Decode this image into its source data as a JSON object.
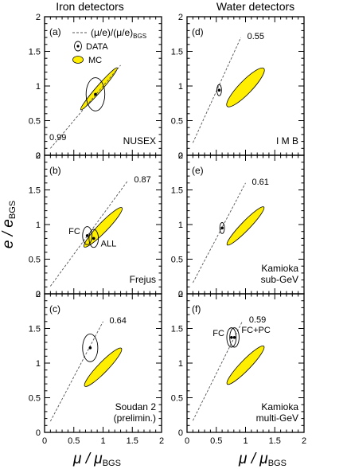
{
  "column_titles": [
    "Iron detectors",
    "Water detectors"
  ],
  "xlabel": {
    "main": "μ / μ",
    "sub": "BGS"
  },
  "ylabel": {
    "main": "e / e",
    "sub": "BGS"
  },
  "legend": {
    "line_label": "(μ/e)/(μ/e)",
    "line_sub": "BGS",
    "data_label": "DATA",
    "mc_label": "MC"
  },
  "colors": {
    "mc_fill": "#ffee00",
    "mc_stroke": "#000000",
    "line": "#555555"
  },
  "chart_data": [
    {
      "type": "scatter",
      "panel_label": "(a)",
      "detector": [
        "NUSEX"
      ],
      "ratio_label": "0.99",
      "column": "Iron detectors",
      "xlim": [
        0,
        2
      ],
      "ylim": [
        0,
        2
      ],
      "xticks": [
        "0",
        "0.5",
        "1",
        "1.5",
        "2"
      ],
      "yticks": [
        "0",
        "0.5",
        "1",
        "1.5",
        "2"
      ],
      "ratio_line": [
        [
          0.1,
          0.1
        ],
        [
          1.3,
          1.3
        ]
      ],
      "mc_ellipse": {
        "cx": 0.93,
        "cy": 0.96,
        "length": 0.95,
        "width": 0.1,
        "angle_deg": 49
      },
      "data_points": [
        {
          "label": "",
          "x": 0.87,
          "y": 0.88,
          "rx": 0.16,
          "ry": 0.24
        }
      ]
    },
    {
      "type": "scatter",
      "panel_label": "(b)",
      "detector": [
        "Frejus"
      ],
      "ratio_label": "0.87",
      "column": "Iron detectors",
      "xlim": [
        0,
        2
      ],
      "ylim": [
        0,
        2
      ],
      "xticks": [
        "0",
        "0.5",
        "1",
        "1.5",
        "2"
      ],
      "yticks": [
        "0",
        "0.5",
        "1",
        "1.5",
        "2"
      ],
      "ratio_line": [
        [
          0.1,
          0.11
        ],
        [
          1.42,
          1.63
        ]
      ],
      "mc_ellipse": {
        "cx": 1.0,
        "cy": 0.96,
        "length": 0.93,
        "width": 0.16,
        "angle_deg": 46
      },
      "data_points": [
        {
          "label": "FC",
          "x": 0.73,
          "y": 0.84,
          "rx": 0.08,
          "ry": 0.13
        },
        {
          "label": "ALL",
          "x": 0.84,
          "y": 0.8,
          "rx": 0.08,
          "ry": 0.13
        }
      ]
    },
    {
      "type": "scatter",
      "panel_label": "(c)",
      "detector": [
        "Soudan 2",
        "(prelimin.)"
      ],
      "ratio_label": "0.64",
      "column": "Iron detectors",
      "xlim": [
        0,
        2
      ],
      "ylim": [
        0,
        2
      ],
      "xticks": [
        "0",
        "0.5",
        "1",
        "1.5",
        "2"
      ],
      "yticks": [
        "0",
        "0.5",
        "1",
        "1.5",
        "2"
      ],
      "ratio_line": [
        [
          0.1,
          0.16
        ],
        [
          1.0,
          1.6
        ]
      ],
      "mc_ellipse": {
        "cx": 1.0,
        "cy": 0.94,
        "length": 0.9,
        "width": 0.17,
        "angle_deg": 46
      },
      "data_points": [
        {
          "label": "",
          "x": 0.78,
          "y": 1.22,
          "rx": 0.13,
          "ry": 0.2
        }
      ]
    },
    {
      "type": "scatter",
      "panel_label": "(d)",
      "detector": [
        "I M B"
      ],
      "ratio_label": "0.55",
      "column": "Water detectors",
      "xlim": [
        0,
        2
      ],
      "ylim": [
        0,
        2
      ],
      "xticks": [
        "0",
        "0.5",
        "1",
        "1.5",
        "2"
      ],
      "yticks": [
        "0",
        "0.5",
        "1",
        "1.5",
        "2"
      ],
      "ratio_line": [
        [
          0.1,
          0.18
        ],
        [
          0.92,
          1.7
        ]
      ],
      "mc_ellipse": {
        "cx": 1.0,
        "cy": 0.98,
        "length": 0.9,
        "width": 0.22,
        "angle_deg": 46
      },
      "data_points": [
        {
          "label": "",
          "x": 0.55,
          "y": 0.94,
          "rx": 0.04,
          "ry": 0.08
        }
      ]
    },
    {
      "type": "scatter",
      "panel_label": "(e)",
      "detector": [
        "Kamioka",
        "sub-GeV"
      ],
      "ratio_label": "0.61",
      "column": "Water detectors",
      "xlim": [
        0,
        2
      ],
      "ylim": [
        0,
        2
      ],
      "xticks": [
        "0",
        "0.5",
        "1",
        "1.5",
        "2"
      ],
      "yticks": [
        "0",
        "0.5",
        "1",
        "1.5",
        "2"
      ],
      "ratio_line": [
        [
          0.1,
          0.16
        ],
        [
          1.0,
          1.6
        ]
      ],
      "mc_ellipse": {
        "cx": 1.0,
        "cy": 0.98,
        "length": 0.9,
        "width": 0.15,
        "angle_deg": 46
      },
      "data_points": [
        {
          "label": "",
          "x": 0.6,
          "y": 0.95,
          "rx": 0.04,
          "ry": 0.08
        }
      ]
    },
    {
      "type": "scatter",
      "panel_label": "(f)",
      "detector": [
        "Kamioka",
        "multi-GeV"
      ],
      "ratio_label": "0.59",
      "column": "Water detectors",
      "xlim": [
        0,
        2
      ],
      "ylim": [
        0,
        2
      ],
      "xticks": [
        "0",
        "0.5",
        "1",
        "1.5",
        "2"
      ],
      "yticks": [
        "0",
        "0.5",
        "1",
        "1.5",
        "2"
      ],
      "ratio_line": [
        [
          0.1,
          0.17
        ],
        [
          0.95,
          1.61
        ]
      ],
      "mc_ellipse": {
        "cx": 1.0,
        "cy": 0.97,
        "length": 0.9,
        "width": 0.17,
        "angle_deg": 46
      },
      "data_points": [
        {
          "label": "FC",
          "x": 0.76,
          "y": 1.37,
          "rx": 0.08,
          "ry": 0.14
        },
        {
          "label": "FC+PC",
          "x": 0.81,
          "y": 1.37,
          "rx": 0.08,
          "ry": 0.14
        }
      ]
    }
  ]
}
